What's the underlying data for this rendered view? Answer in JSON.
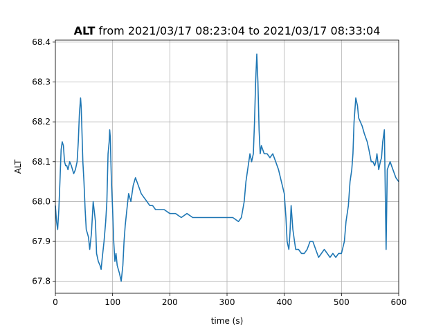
{
  "chart_data": {
    "type": "line",
    "title_bold": "ALT",
    "title_rest": " from 2021/03/17 08:23:04 to 2021/03/17 08:33:04",
    "xlabel": "time (s)",
    "ylabel": "ALT",
    "xlim": [
      0,
      600
    ],
    "ylim": [
      67.77,
      68.405
    ],
    "grid": true,
    "legend": "none",
    "series_color": "#1f77b4",
    "x_ticks": [
      0,
      100,
      200,
      300,
      400,
      500,
      600
    ],
    "y_ticks": [
      67.8,
      67.9,
      68.0,
      68.1,
      68.2,
      68.3,
      68.4
    ],
    "x_tick_labels": [
      "0",
      "100",
      "200",
      "300",
      "400",
      "500",
      "600"
    ],
    "y_tick_labels": [
      "67.8",
      "67.9",
      "68.0",
      "68.1",
      "68.2",
      "68.3",
      "68.4"
    ],
    "series": [
      {
        "x": [
          0,
          2,
          4,
          6,
          8,
          10,
          12,
          14,
          16,
          18,
          20,
          22,
          25,
          28,
          32,
          35,
          38,
          40,
          42,
          44,
          45,
          46,
          48,
          50,
          52,
          54,
          56,
          58,
          60,
          63,
          66,
          70,
          72,
          75,
          78,
          80,
          82,
          85,
          88,
          90,
          92,
          94,
          95,
          96,
          97,
          98,
          100,
          102,
          104,
          106,
          108,
          110,
          112,
          115,
          118,
          120,
          122,
          125,
          128,
          132,
          136,
          140,
          145,
          150,
          155,
          160,
          165,
          170,
          175,
          180,
          190,
          200,
          210,
          220,
          230,
          240,
          250,
          260,
          270,
          280,
          290,
          300,
          310,
          320,
          325,
          330,
          333,
          336,
          340,
          343,
          346,
          348,
          350,
          352,
          354,
          356,
          358,
          360,
          365,
          370,
          375,
          380,
          385,
          390,
          395,
          400,
          403,
          405,
          408,
          410,
          412,
          415,
          418,
          420,
          425,
          430,
          435,
          440,
          445,
          450,
          455,
          460,
          465,
          470,
          475,
          480,
          485,
          490,
          495,
          500,
          505,
          508,
          512,
          515,
          518,
          520,
          522,
          525,
          528,
          530,
          533,
          536,
          540,
          545,
          548,
          552,
          555,
          558,
          560,
          562,
          565,
          568,
          570,
          572,
          575,
          578,
          580,
          585,
          590,
          595,
          600
        ],
        "y": [
          67.99,
          67.95,
          67.93,
          67.98,
          68.05,
          68.13,
          68.15,
          68.14,
          68.1,
          68.09,
          68.09,
          68.08,
          68.1,
          68.09,
          68.07,
          68.08,
          68.1,
          68.15,
          68.22,
          68.26,
          68.24,
          68.2,
          68.1,
          68.05,
          67.98,
          67.93,
          67.92,
          67.91,
          67.88,
          67.92,
          68.0,
          67.95,
          67.87,
          67.85,
          67.84,
          67.83,
          67.86,
          67.9,
          67.95,
          68.0,
          68.12,
          68.15,
          68.18,
          68.16,
          68.1,
          68.05,
          67.98,
          67.9,
          67.85,
          67.87,
          67.84,
          67.83,
          67.82,
          67.8,
          67.84,
          67.9,
          67.94,
          67.98,
          68.02,
          68.0,
          68.04,
          68.06,
          68.04,
          68.02,
          68.01,
          68.0,
          67.99,
          67.99,
          67.98,
          67.98,
          67.98,
          67.97,
          67.97,
          67.96,
          67.97,
          67.96,
          67.96,
          67.96,
          67.96,
          67.96,
          67.96,
          67.96,
          67.96,
          67.95,
          67.96,
          68.0,
          68.05,
          68.08,
          68.12,
          68.1,
          68.12,
          68.2,
          68.3,
          68.37,
          68.3,
          68.18,
          68.12,
          68.14,
          68.12,
          68.12,
          68.11,
          68.12,
          68.1,
          68.08,
          68.05,
          68.02,
          67.96,
          67.9,
          67.88,
          67.92,
          67.99,
          67.93,
          67.9,
          67.88,
          67.88,
          67.87,
          67.87,
          67.88,
          67.9,
          67.9,
          67.88,
          67.86,
          67.87,
          67.88,
          67.87,
          67.86,
          67.87,
          67.86,
          67.87,
          67.87,
          67.9,
          67.95,
          67.99,
          68.05,
          68.08,
          68.12,
          68.2,
          68.26,
          68.24,
          68.21,
          68.2,
          68.19,
          68.17,
          68.15,
          68.13,
          68.1,
          68.1,
          68.09,
          68.1,
          68.12,
          68.08,
          68.1,
          68.11,
          68.15,
          68.18,
          67.88,
          68.08,
          68.1,
          68.08,
          68.06,
          68.05
        ]
      }
    ]
  }
}
